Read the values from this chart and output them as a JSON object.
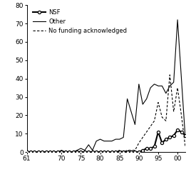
{
  "years": [
    61,
    62,
    63,
    64,
    65,
    66,
    67,
    68,
    69,
    70,
    71,
    72,
    73,
    74,
    75,
    76,
    77,
    78,
    79,
    80,
    81,
    82,
    83,
    84,
    85,
    86,
    87,
    88,
    89,
    90,
    91,
    92,
    93,
    94,
    95,
    96,
    97,
    98,
    99,
    100,
    101,
    102
  ],
  "nsf": [
    0,
    0,
    0,
    0,
    0,
    0,
    0,
    0,
    0,
    0,
    0,
    0,
    0,
    0,
    0,
    0,
    0,
    0,
    0,
    0,
    0,
    0,
    0,
    0,
    0,
    0,
    0,
    0,
    0,
    0,
    1,
    2,
    2,
    3,
    11,
    5,
    7,
    8,
    9,
    12,
    11,
    9
  ],
  "other": [
    0,
    0,
    0,
    0,
    0,
    0,
    0,
    0,
    0,
    1,
    0,
    0,
    0,
    1,
    2,
    1,
    4,
    1,
    6,
    7,
    6,
    6,
    6,
    7,
    7,
    8,
    29,
    22,
    15,
    37,
    26,
    29,
    35,
    37,
    36,
    36,
    32,
    36,
    38,
    72,
    40,
    8
  ],
  "no_funding": [
    0,
    0,
    0,
    0,
    0,
    0,
    0,
    0,
    0,
    0,
    0,
    0,
    0,
    0,
    0,
    0,
    0,
    0,
    0,
    0,
    0,
    0,
    0,
    0,
    1,
    0,
    1,
    1,
    1,
    5,
    8,
    11,
    14,
    17,
    27,
    19,
    17,
    42,
    22,
    35,
    20,
    3
  ],
  "xticks": [
    61,
    70,
    75,
    80,
    85,
    90,
    95,
    100
  ],
  "xtick_labels": [
    "61",
    "70",
    "75",
    "80",
    "85",
    "90",
    "95",
    "00"
  ],
  "yticks": [
    0,
    10,
    20,
    30,
    40,
    50,
    60,
    70,
    80
  ],
  "ylim": [
    0,
    80
  ],
  "xlim": [
    61,
    102
  ],
  "background_color": "#ffffff",
  "line_color": "#000000",
  "legend_labels": [
    "NSF",
    "Other",
    "No funding acknowledged"
  ]
}
